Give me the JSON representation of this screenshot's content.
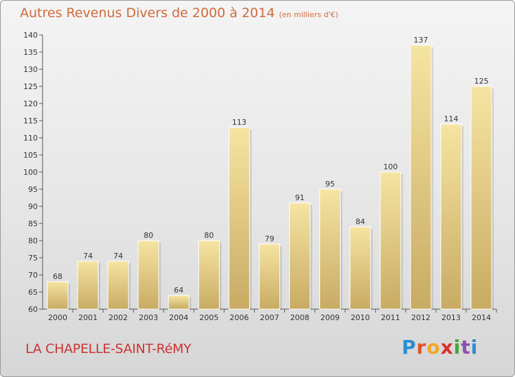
{
  "header": {
    "title": "Autres Revenus Divers de 2000 à 2014",
    "subtitle": "(en milliers d'€)"
  },
  "footer": {
    "place": "LA CHAPELLE-SAINT-RéMY",
    "logo_letters": [
      "P",
      "r",
      "o",
      "x",
      "i",
      "t",
      "i"
    ]
  },
  "colors": {
    "bar_light": "#f6e4a2",
    "bar_dark": "#c8ab63",
    "title": "#d06a3c",
    "place": "#cc3333",
    "logo": [
      "#2b8fd1",
      "#e0542c",
      "#f2a623",
      "#d8302e",
      "#4aa23a",
      "#8c4fb0",
      "#2b8fd1"
    ]
  },
  "chart_data": {
    "type": "bar",
    "categories": [
      "2000",
      "2001",
      "2002",
      "2003",
      "2004",
      "2005",
      "2006",
      "2007",
      "2008",
      "2009",
      "2010",
      "2011",
      "2012",
      "2013",
      "2014"
    ],
    "values": [
      68,
      74,
      74,
      80,
      64,
      80,
      113,
      79,
      91,
      95,
      84,
      100,
      137,
      114,
      125
    ],
    "ylim": [
      60,
      140
    ],
    "yticks": [
      60,
      65,
      70,
      75,
      80,
      85,
      90,
      95,
      100,
      105,
      110,
      115,
      120,
      125,
      130,
      135,
      140
    ],
    "grid": false,
    "data_labels": true
  }
}
